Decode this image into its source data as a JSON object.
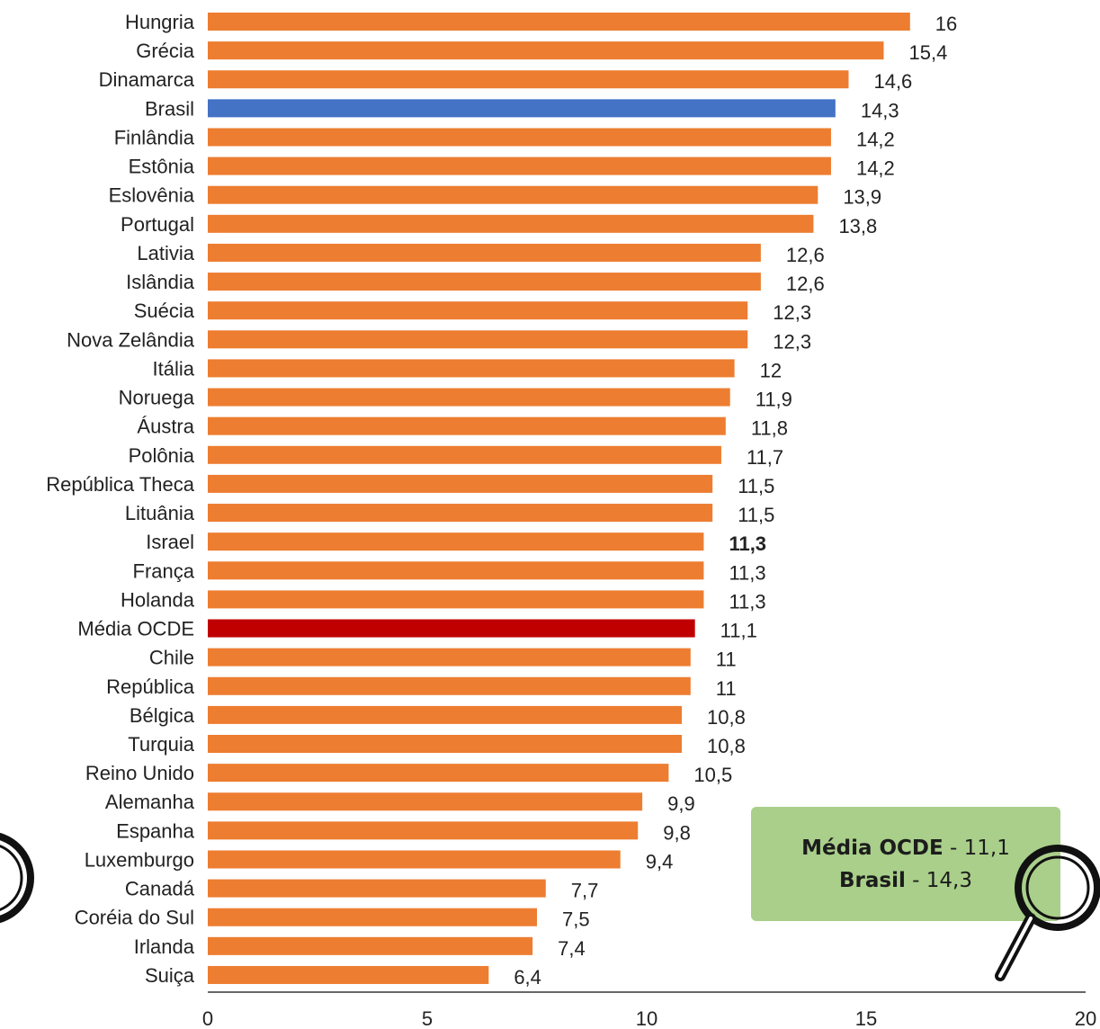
{
  "chart_data": {
    "type": "bar",
    "orientation": "horizontal",
    "categories": [
      "Hungria",
      "Grécia",
      "Dinamarca",
      "Brasil",
      "Finlândia",
      "Estônia",
      "Eslovênia",
      "Portugal",
      "Lativia",
      "Islândia",
      "Suécia",
      "Nova Zelândia",
      "Itália",
      "Noruega",
      "Áustra",
      "Polônia",
      "República Theca",
      "Lituânia",
      "Israel",
      "França",
      "Holanda",
      "Média OCDE",
      "Chile",
      "República",
      "Bélgica",
      "Turquia",
      "Reino Unido",
      "Alemanha",
      "Espanha",
      "Luxemburgo",
      "Canadá",
      "Coréia do Sul",
      "Irlanda",
      "Suiça"
    ],
    "values": [
      16,
      15.4,
      14.6,
      14.3,
      14.2,
      14.2,
      13.9,
      13.8,
      12.6,
      12.6,
      12.3,
      12.3,
      12,
      11.9,
      11.8,
      11.7,
      11.5,
      11.5,
      11.3,
      11.3,
      11.3,
      11.1,
      11,
      11,
      10.8,
      10.8,
      10.5,
      9.9,
      9.8,
      9.4,
      7.7,
      7.5,
      7.4,
      6.4
    ],
    "value_labels": [
      "16",
      "15,4",
      "14,6",
      "14,3",
      "14,2",
      "14,2",
      "13,9",
      "13,8",
      "12,6",
      "12,6",
      "12,3",
      "12,3",
      "12",
      "11,9",
      "11,8",
      "11,7",
      "11,5",
      "11,5",
      "11,3",
      "11,3",
      "11,3",
      "11,1",
      "11",
      "11",
      "10,8",
      "10,8",
      "10,5",
      "9,9",
      "9,8",
      "9,4",
      "7,7",
      "7,5",
      "7,4",
      "6,4"
    ],
    "bold_value_index": 18,
    "xlim": [
      0,
      20
    ],
    "x_ticks": [
      0,
      5,
      10,
      15,
      20
    ],
    "title": "",
    "xlabel": "",
    "ylabel": "",
    "grid": false,
    "colors": {
      "default": "#ed7d31",
      "Brasil": "#4472c4",
      "Média OCDE": "#c00000"
    }
  },
  "callout": {
    "line1_bold": "Média OCDE",
    "line1_rest": " - 11,1",
    "line2_bold": "Brasil",
    "line2_rest": " - 14,3",
    "background": "#a9cf8a"
  },
  "icons": [
    "magnifier-icon"
  ]
}
